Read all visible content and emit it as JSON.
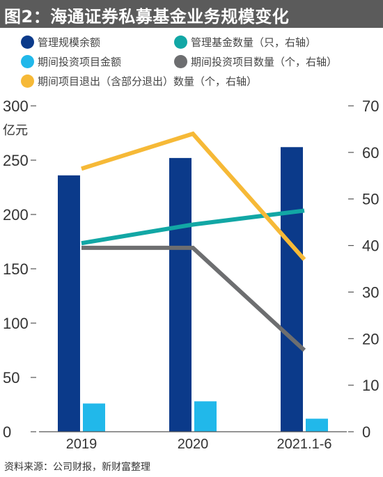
{
  "title": "图2：海通证券私募基金业务规模变化",
  "legend": [
    {
      "label": "管理规模余额",
      "color": "#0b3a8a"
    },
    {
      "label": "管理基金数量（只，右轴）",
      "color": "#12a7a5"
    },
    {
      "label": "期间投资项目金额",
      "color": "#21b8ea"
    },
    {
      "label": "期间投资项目数量（个，右轴）",
      "color": "#6d6e70"
    },
    {
      "label": "期间项目退出（含部分退出）数量（个，右轴）",
      "color": "#f6b937"
    }
  ],
  "source": "资料来源：公司财报，新财富整理",
  "chart_data": {
    "type": "bar",
    "categories": [
      "2019",
      "2020",
      "2021.1-6"
    ],
    "left_axis": {
      "unit": "亿元",
      "ylim": [
        0,
        300
      ],
      "ticks": [
        "0",
        "50",
        "100",
        "150",
        "200",
        "250",
        "300"
      ]
    },
    "right_axis": {
      "ylim": [
        0,
        70
      ],
      "ticks": [
        "0",
        "10",
        "20",
        "30",
        "40",
        "50",
        "60",
        "70"
      ]
    },
    "series": [
      {
        "name": "管理规模余额",
        "type": "bar",
        "axis": "left",
        "color": "#0b3a8a",
        "values": [
          236,
          252,
          262
        ]
      },
      {
        "name": "期间投资项目金额",
        "type": "bar",
        "axis": "left",
        "color": "#21b8ea",
        "values": [
          26,
          28,
          12
        ]
      },
      {
        "name": "管理基金数量（只，右轴）",
        "type": "line",
        "axis": "right",
        "color": "#12a7a5",
        "values": [
          40.5,
          44.5,
          47.5
        ]
      },
      {
        "name": "期间投资项目数量（个，右轴）",
        "type": "line",
        "axis": "right",
        "color": "#6d6e70",
        "values": [
          39.5,
          39.5,
          17.5
        ]
      },
      {
        "name": "期间项目退出（含部分退出）数量（个，右轴）",
        "type": "line",
        "axis": "right",
        "color": "#f6b937",
        "values": [
          56.5,
          64,
          37
        ]
      }
    ]
  }
}
